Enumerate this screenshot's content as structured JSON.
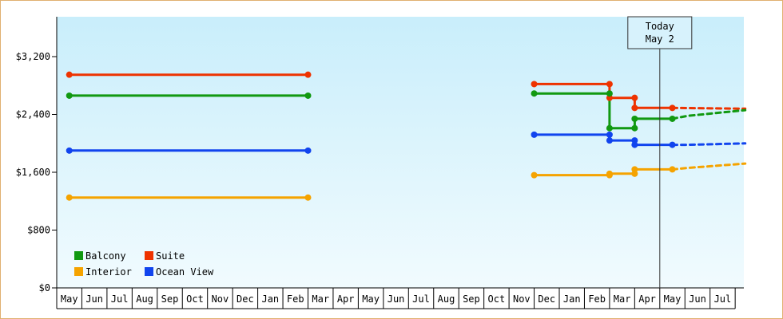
{
  "chart_data": {
    "type": "line",
    "title": "",
    "xlabel": "",
    "ylabel": "",
    "x_months": [
      "May",
      "Jun",
      "Jul",
      "Aug",
      "Sep",
      "Oct",
      "Nov",
      "Dec",
      "Jan",
      "Feb",
      "Mar",
      "Apr",
      "May",
      "Jun",
      "Jul",
      "Aug",
      "Sep",
      "Oct",
      "Nov",
      "Dec",
      "Jan",
      "Feb",
      "Mar",
      "Apr",
      "May",
      "Jun",
      "Jul"
    ],
    "y_ticks": [
      "$0",
      "$800",
      "$1,600",
      "$2,400",
      "$3,200"
    ],
    "ylim": [
      0,
      3200
    ],
    "grid": false,
    "legend_position": "bottom-left",
    "today_marker": {
      "line1": "Today",
      "line2": "May 2",
      "month_index": 24.0
    },
    "colors": {
      "Balcony": "#119911",
      "Suite": "#ee3300",
      "Interior": "#f5a300",
      "Ocean View": "#1144ee"
    },
    "legend": [
      "Balcony",
      "Suite",
      "Interior",
      "Ocean View"
    ],
    "series": [
      {
        "name": "Suite",
        "color": "#ee3300",
        "segments": [
          {
            "style": "solid",
            "steps": [
              [
                0.0,
                2950
              ],
              [
                9.5,
                2950
              ]
            ]
          },
          {
            "style": "solid",
            "steps": [
              [
                18.5,
                2820
              ],
              [
                21.5,
                2820
              ],
              [
                21.5,
                2630
              ],
              [
                22.5,
                2630
              ],
              [
                22.5,
                2490
              ],
              [
                24.0,
                2490
              ]
            ]
          },
          {
            "style": "dashed",
            "points": [
              [
                24.0,
                2490
              ],
              [
                26.9,
                2480
              ]
            ]
          }
        ]
      },
      {
        "name": "Balcony",
        "color": "#119911",
        "segments": [
          {
            "style": "solid",
            "steps": [
              [
                0.0,
                2660
              ],
              [
                9.5,
                2660
              ]
            ]
          },
          {
            "style": "solid",
            "steps": [
              [
                18.5,
                2690
              ],
              [
                21.5,
                2690
              ],
              [
                21.5,
                2210
              ],
              [
                22.5,
                2210
              ],
              [
                22.5,
                2340
              ],
              [
                24.0,
                2340
              ]
            ]
          },
          {
            "style": "dashed",
            "points": [
              [
                24.0,
                2340
              ],
              [
                24.6,
                2380
              ],
              [
                26.9,
                2460
              ]
            ]
          }
        ]
      },
      {
        "name": "Ocean View",
        "color": "#1144ee",
        "segments": [
          {
            "style": "solid",
            "steps": [
              [
                0.0,
                1900
              ],
              [
                9.5,
                1900
              ]
            ]
          },
          {
            "style": "solid",
            "steps": [
              [
                18.5,
                2120
              ],
              [
                21.5,
                2120
              ],
              [
                21.5,
                2040
              ],
              [
                22.5,
                2040
              ],
              [
                22.5,
                1980
              ],
              [
                24.0,
                1980
              ]
            ]
          },
          {
            "style": "dashed",
            "points": [
              [
                24.0,
                1980
              ],
              [
                24.6,
                1980
              ],
              [
                26.9,
                2000
              ]
            ]
          }
        ]
      },
      {
        "name": "Interior",
        "color": "#f5a300",
        "segments": [
          {
            "style": "solid",
            "steps": [
              [
                0.0,
                1250
              ],
              [
                9.5,
                1250
              ]
            ]
          },
          {
            "style": "solid",
            "steps": [
              [
                18.5,
                1560
              ],
              [
                21.5,
                1560
              ],
              [
                21.5,
                1580
              ],
              [
                22.5,
                1580
              ],
              [
                22.5,
                1640
              ],
              [
                24.0,
                1640
              ]
            ]
          },
          {
            "style": "dashed",
            "points": [
              [
                24.0,
                1640
              ],
              [
                24.6,
                1660
              ],
              [
                26.9,
                1720
              ]
            ]
          }
        ]
      }
    ],
    "markers": [
      {
        "series": "Suite",
        "points": [
          [
            0.0,
            2950
          ],
          [
            9.5,
            2950
          ],
          [
            18.5,
            2820
          ],
          [
            21.5,
            2820
          ],
          [
            21.5,
            2630
          ],
          [
            22.5,
            2630
          ],
          [
            22.5,
            2490
          ],
          [
            24.0,
            2490
          ]
        ]
      },
      {
        "series": "Balcony",
        "points": [
          [
            0.0,
            2660
          ],
          [
            9.5,
            2660
          ],
          [
            18.5,
            2690
          ],
          [
            21.5,
            2690
          ],
          [
            21.5,
            2210
          ],
          [
            22.5,
            2210
          ],
          [
            22.5,
            2340
          ],
          [
            24.0,
            2340
          ]
        ]
      },
      {
        "series": "Ocean View",
        "points": [
          [
            0.0,
            1900
          ],
          [
            9.5,
            1900
          ],
          [
            18.5,
            2120
          ],
          [
            21.5,
            2120
          ],
          [
            21.5,
            2040
          ],
          [
            22.5,
            2040
          ],
          [
            22.5,
            1980
          ],
          [
            24.0,
            1980
          ]
        ]
      },
      {
        "series": "Interior",
        "points": [
          [
            0.0,
            1250
          ],
          [
            9.5,
            1250
          ],
          [
            18.5,
            1560
          ],
          [
            21.5,
            1560
          ],
          [
            21.5,
            1580
          ],
          [
            22.5,
            1580
          ],
          [
            22.5,
            1640
          ],
          [
            24.0,
            1640
          ]
        ]
      }
    ]
  }
}
